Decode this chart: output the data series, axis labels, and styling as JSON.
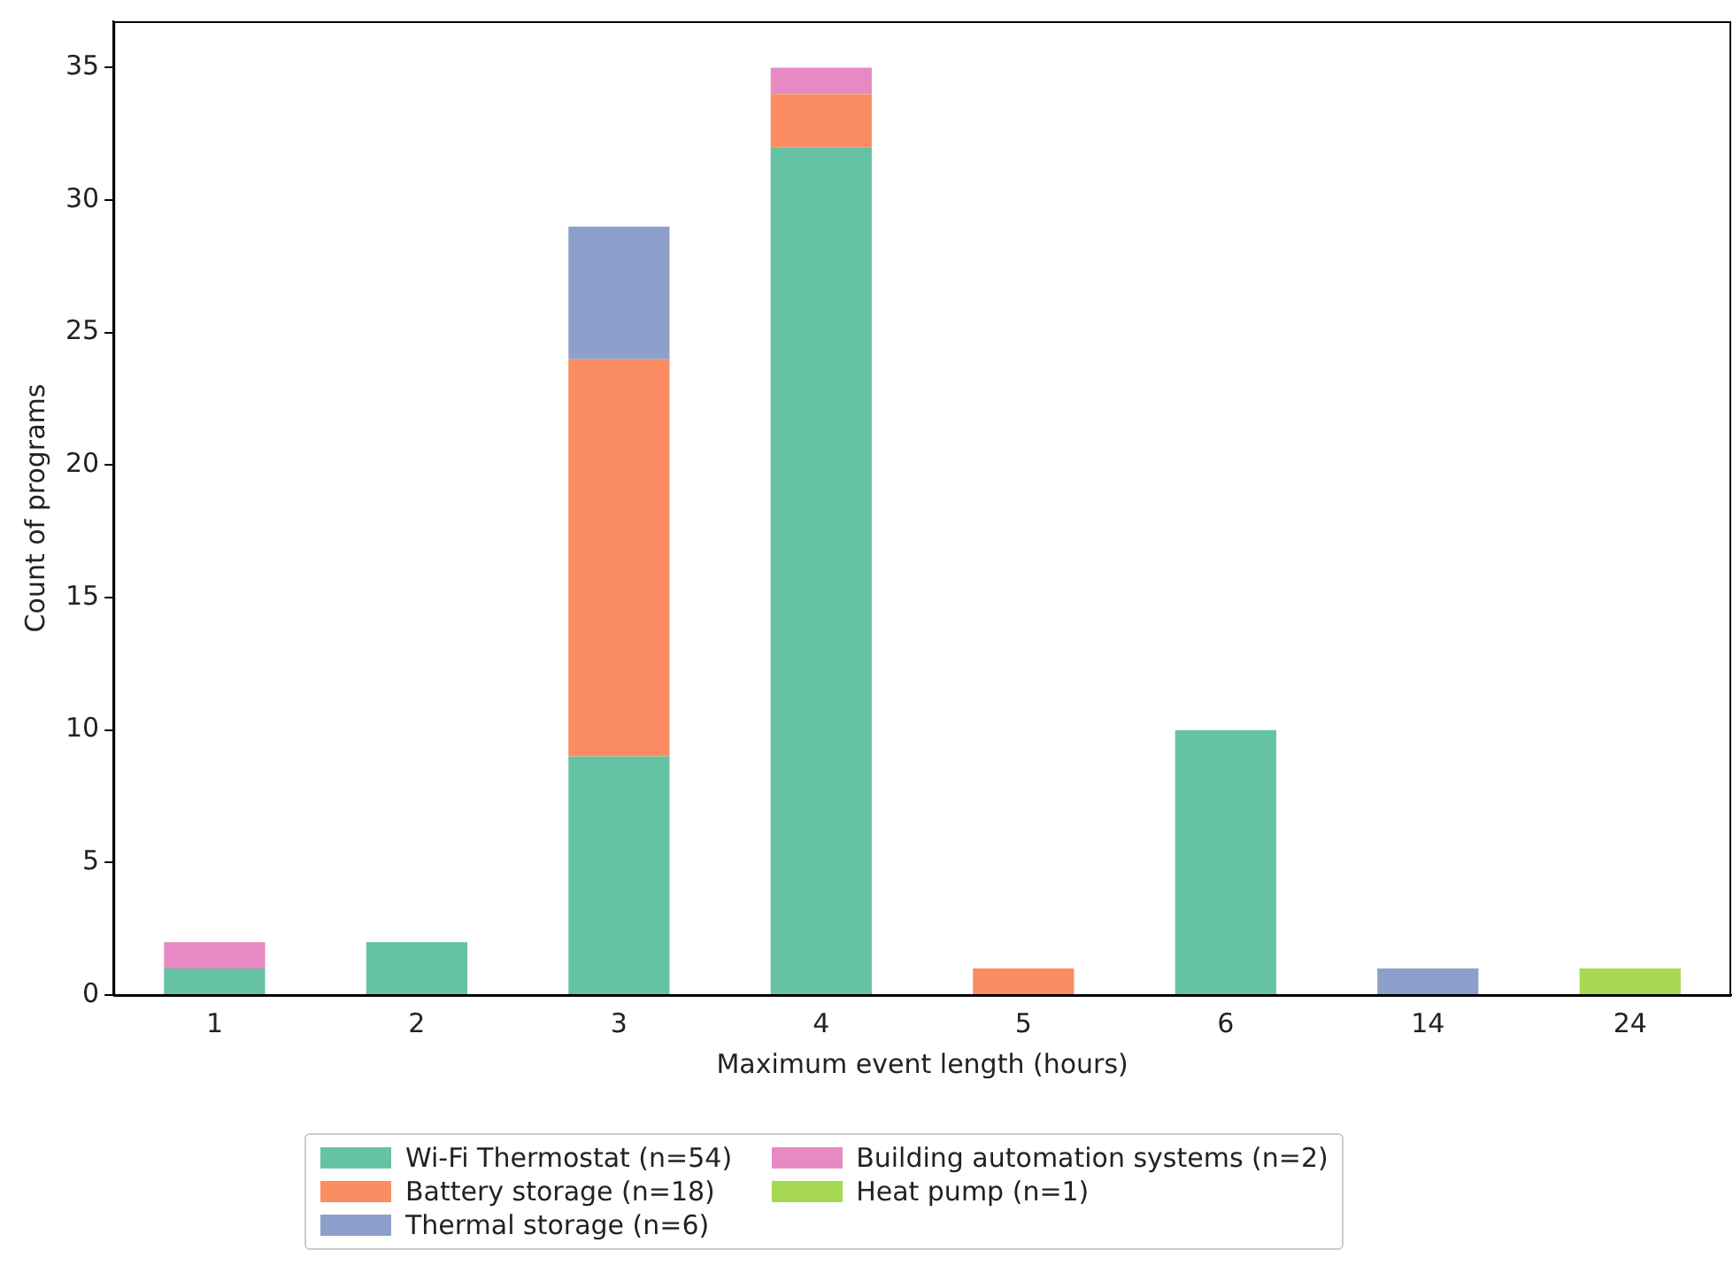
{
  "chart_data": {
    "type": "bar",
    "stacked": true,
    "xlabel": "Maximum event length (hours)",
    "ylabel": "Count of programs",
    "categories": [
      "1",
      "2",
      "3",
      "4",
      "5",
      "6",
      "14",
      "24"
    ],
    "series": [
      {
        "name": "Wi-Fi Thermostat (n=54)",
        "color": "#66c2a5",
        "values": [
          1,
          2,
          9,
          32,
          0,
          10,
          0,
          0
        ]
      },
      {
        "name": "Battery storage (n=18)",
        "color": "#fc8d62",
        "values": [
          0,
          0,
          15,
          2,
          1,
          0,
          0,
          0
        ]
      },
      {
        "name": "Thermal storage (n=6)",
        "color": "#8da0cb",
        "values": [
          0,
          0,
          5,
          0,
          0,
          0,
          1,
          0
        ]
      },
      {
        "name": "Building automation systems (n=2)",
        "color": "#e78ac3",
        "values": [
          1,
          0,
          0,
          1,
          0,
          0,
          0,
          0
        ]
      },
      {
        "name": "Heat pump (n=1)",
        "color": "#a6d854",
        "values": [
          0,
          0,
          0,
          0,
          0,
          0,
          0,
          1
        ]
      }
    ],
    "ylim": [
      0,
      36.75
    ],
    "yticks": [
      0,
      5,
      10,
      15,
      20,
      25,
      30,
      35
    ],
    "grid": false,
    "legend": "bottom"
  }
}
